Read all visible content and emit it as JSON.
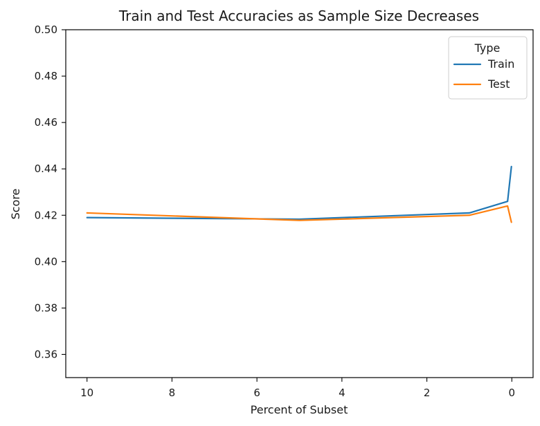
{
  "chart_data": {
    "type": "line",
    "title": "Train and Test Accuracies as Sample Size Decreases",
    "xlabel": "Percent of Subset",
    "ylabel": "Score",
    "x_inverted": true,
    "xlim": [
      10.5,
      -0.5
    ],
    "ylim": [
      0.35,
      0.5
    ],
    "xticks": [
      10,
      8,
      6,
      4,
      2,
      0
    ],
    "xtick_labels": [
      "10",
      "8",
      "6",
      "4",
      "2",
      "0"
    ],
    "yticks": [
      0.36,
      0.38,
      0.4,
      0.42,
      0.44,
      0.46,
      0.48,
      0.5
    ],
    "ytick_labels": [
      "0.36",
      "0.38",
      "0.40",
      "0.42",
      "0.44",
      "0.46",
      "0.48",
      "0.50"
    ],
    "grid": false,
    "legend": {
      "title": "Type",
      "placement": "top-right"
    },
    "series": [
      {
        "name": "Train",
        "color": "#1f77b4",
        "x": [
          10,
          5,
          1,
          0.1,
          0.01
        ],
        "y": [
          0.419,
          0.4183,
          0.421,
          0.426,
          0.441
        ]
      },
      {
        "name": "Test",
        "color": "#ff7f0e",
        "x": [
          10,
          5,
          1,
          0.1,
          0.01
        ],
        "y": [
          0.421,
          0.4178,
          0.42,
          0.424,
          0.417
        ]
      }
    ]
  }
}
